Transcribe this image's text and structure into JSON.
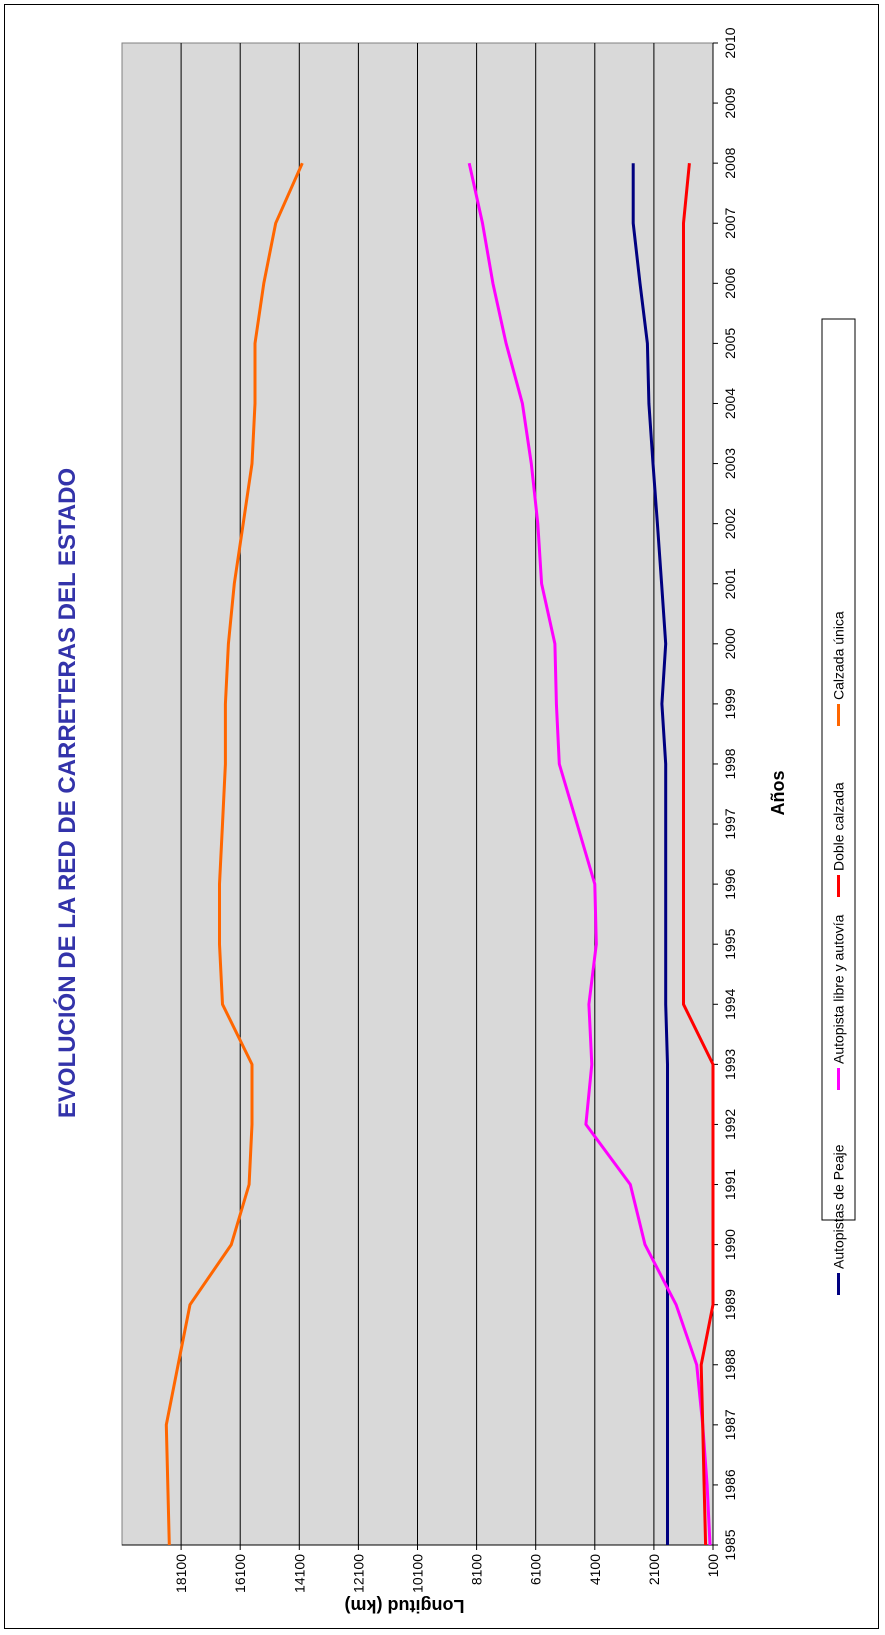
{
  "chart_data": {
    "type": "line",
    "title": "EVOLUCIÓN DE LA RED DE CARRETERAS DEL ESTADO",
    "xlabel": "Años",
    "ylabel": "Longitud (km)",
    "xlim": [
      1985,
      2010
    ],
    "ylim": [
      100,
      20100
    ],
    "x_ticks": [
      1985,
      1986,
      1987,
      1988,
      1989,
      1990,
      1991,
      1992,
      1993,
      1994,
      1995,
      1996,
      1997,
      1998,
      1999,
      2000,
      2001,
      2002,
      2003,
      2004,
      2005,
      2006,
      2007,
      2008,
      2009,
      2010
    ],
    "y_ticks": [
      100,
      2100,
      4100,
      6100,
      8100,
      10100,
      12100,
      14100,
      16100,
      18100
    ],
    "grid": true,
    "legend_position": "bottom",
    "title_color": "#3333aa",
    "plot_bg": "#d9d9d9",
    "x": [
      1985,
      1986,
      1987,
      1988,
      1989,
      1990,
      1991,
      1992,
      1993,
      1994,
      1995,
      1996,
      1997,
      1998,
      1999,
      2000,
      2001,
      2002,
      2003,
      2004,
      2005,
      2006,
      2007,
      2008
    ],
    "series": [
      {
        "name": "Autopistas de Peaje",
        "color": "#000080",
        "values": [
          1640,
          1640,
          1640,
          1640,
          1640,
          1640,
          1640,
          1640,
          1640,
          1700,
          1700,
          1700,
          1700,
          1700,
          1830,
          1700,
          1840,
          1980,
          2130,
          2270,
          2320,
          2570,
          2800,
          2800
        ]
      },
      {
        "name": "Autopista libre y autovía",
        "color": "#ff00ff",
        "values": [
          200,
          300,
          450,
          650,
          1350,
          2400,
          2900,
          4400,
          4200,
          4300,
          4050,
          4100,
          4700,
          5300,
          5400,
          5450,
          5900,
          6030,
          6250,
          6550,
          7100,
          7550,
          7900,
          8350
        ]
      },
      {
        "name": "Doble calzada",
        "color": "#ff0000",
        "values": [
          350,
          400,
          450,
          500,
          100,
          100,
          100,
          100,
          100,
          1100,
          1100,
          1100,
          1100,
          1100,
          1100,
          1100,
          1100,
          1100,
          1100,
          1100,
          1100,
          1100,
          1100,
          900
        ]
      },
      {
        "name": "Calzada única",
        "color": "#ff6600",
        "values": [
          18500,
          18550,
          18600,
          18200,
          17800,
          16400,
          15800,
          15700,
          15700,
          16700,
          16800,
          16800,
          16700,
          16600,
          16600,
          16500,
          16300,
          16000,
          15700,
          15600,
          15600,
          15300,
          14900,
          14000
        ]
      }
    ]
  }
}
